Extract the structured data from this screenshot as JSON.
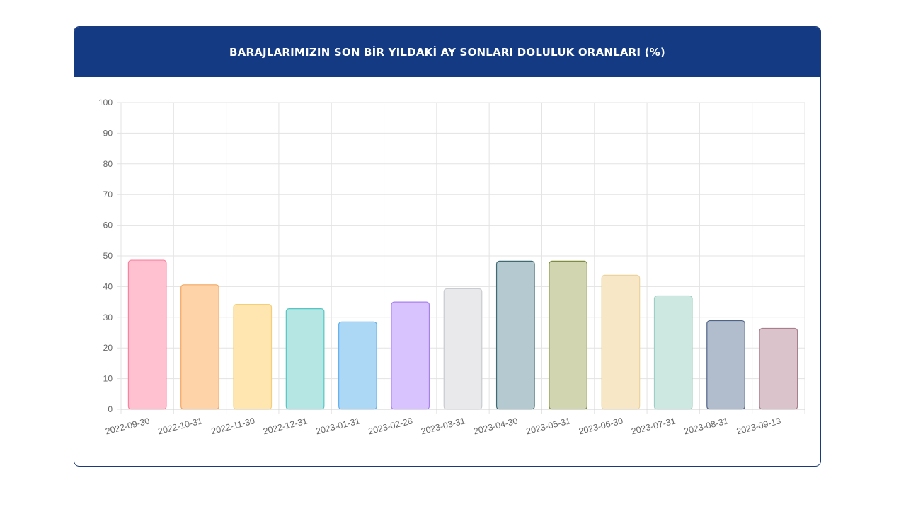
{
  "header": {
    "title": "BARAJLARIMIZIN SON BİR YILDAKİ AY SONLARI DOLULUK ORANLARI (%)"
  },
  "chart_data": {
    "type": "bar",
    "title": "BARAJLARIMIZIN SON BİR YILDAKİ AY SONLARI DOLULUK ORANLARI (%)",
    "xlabel": "",
    "ylabel": "",
    "ylim": [
      0,
      100
    ],
    "yticks": [
      0,
      10,
      20,
      30,
      40,
      50,
      60,
      70,
      80,
      90,
      100
    ],
    "grid": true,
    "categories": [
      "2022-09-30",
      "2022-10-31",
      "2022-11-30",
      "2022-12-31",
      "2023-01-31",
      "2023-02-28",
      "2023-03-31",
      "2023-04-30",
      "2023-05-31",
      "2023-06-30",
      "2023-07-31",
      "2023-08-31",
      "2023-09-13"
    ],
    "values": [
      48.6,
      40.6,
      34.2,
      32.8,
      28.5,
      35.0,
      39.3,
      48.3,
      48.3,
      43.7,
      37.0,
      28.9,
      26.4
    ],
    "colors": {
      "fills": [
        "#ffc0cf",
        "#ffd3a8",
        "#ffe5b0",
        "#b5e6e4",
        "#acd8f6",
        "#d8c3ff",
        "#e9e9ec",
        "#b4cad0",
        "#d1d6b0",
        "#f8e7c7",
        "#cde7e1",
        "#b1bdcd",
        "#dbc3cb"
      ],
      "borders": [
        "#ff7f9e",
        "#f3a560",
        "#f5cf78",
        "#55c6c2",
        "#5fb1ee",
        "#a77ff3",
        "#cacbd0",
        "#3f6a73",
        "#7f8c3c",
        "#ecd39e",
        "#9fcfc3",
        "#4f6388",
        "#a87f8f"
      ],
      "header": "#143a84",
      "grid": "#e3e3e3"
    }
  }
}
